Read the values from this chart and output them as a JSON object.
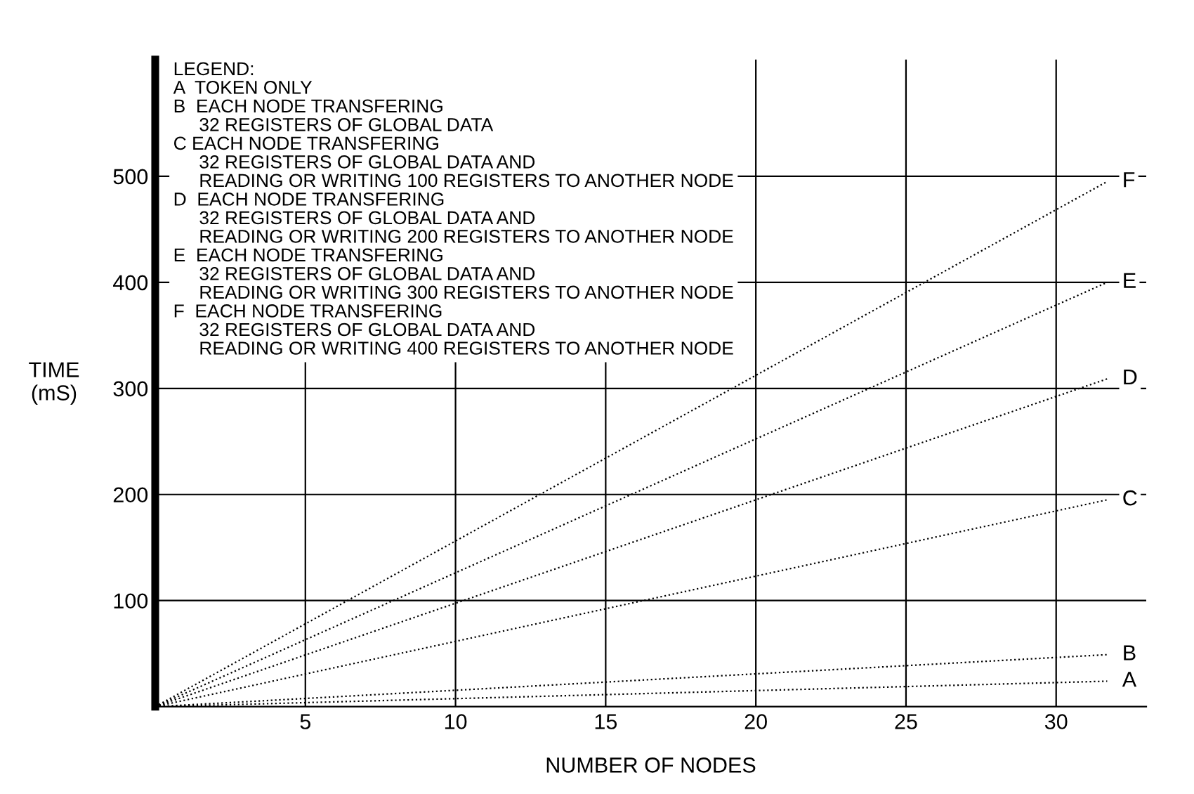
{
  "chart_data": {
    "type": "line",
    "xlabel": "NUMBER OF NODES",
    "ylabel": "TIME\n(mS)",
    "legend_title": "LEGEND:",
    "annotations": [
      "A  TOKEN ONLY",
      "B  EACH NODE TRANSFERING\n     32 REGISTERS OF GLOBAL DATA",
      "C EACH NODE TRANSFERING\n     32 REGISTERS OF GLOBAL DATA AND\n     READING OR WRITING 100 REGISTERS TO ANOTHER NODE",
      "D  EACH NODE TRANSFERING\n     32 REGISTERS OF GLOBAL DATA AND\n     READING OR WRITING 200 REGISTERS TO ANOTHER NODE",
      "E  EACH NODE TRANSFERING\n     32 REGISTERS OF GLOBAL DATA AND\n     READING OR WRITING 300 REGISTERS TO ANOTHER NODE",
      "F  EACH NODE TRANSFERING\n     32 REGISTERS OF GLOBAL DATA AND\n     READING OR WRITING 400 REGISTERS TO ANOTHER NODE"
    ],
    "x": [
      0,
      31.7
    ],
    "series": [
      {
        "name": "A",
        "color": "#000000",
        "values": [
          0,
          24
        ]
      },
      {
        "name": "B",
        "color": "#000000",
        "values": [
          0,
          49
        ]
      },
      {
        "name": "C",
        "color": "#000000",
        "values": [
          0,
          195
        ]
      },
      {
        "name": "D",
        "color": "#000000",
        "values": [
          0,
          309
        ]
      },
      {
        "name": "E",
        "color": "#000000",
        "values": [
          0,
          400
        ]
      },
      {
        "name": "F",
        "color": "#000000",
        "values": [
          0,
          495
        ]
      }
    ],
    "xlim": [
      0,
      33
    ],
    "ylim": [
      0,
      610
    ],
    "xticks": [
      5,
      10,
      15,
      20,
      25,
      30
    ],
    "yticks": [
      100,
      200,
      300,
      400,
      500
    ],
    "grid": true,
    "line_style": "dotted",
    "marker": "none",
    "legend": false
  }
}
